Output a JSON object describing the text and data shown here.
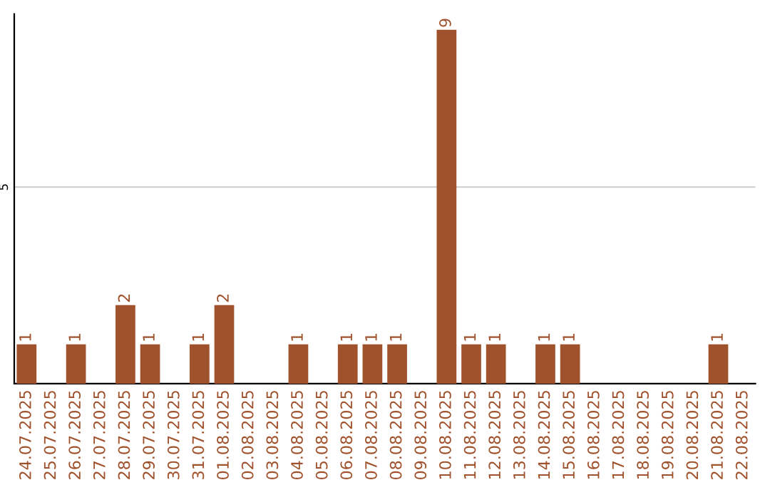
{
  "chart_data": {
    "type": "bar",
    "categories": [
      "24.07.2025",
      "25.07.2025",
      "26.07.2025",
      "27.07.2025",
      "28.07.2025",
      "29.07.2025",
      "30.07.2025",
      "31.07.2025",
      "01.08.2025",
      "02.08.2025",
      "03.08.2025",
      "04.08.2025",
      "05.08.2025",
      "06.08.2025",
      "07.08.2025",
      "08.08.2025",
      "09.08.2025",
      "10.08.2025",
      "11.08.2025",
      "12.08.2025",
      "13.08.2025",
      "14.08.2025",
      "15.08.2025",
      "16.08.2025",
      "17.08.2025",
      "18.08.2025",
      "19.08.2025",
      "20.08.2025",
      "21.08.2025",
      "22.08.2025"
    ],
    "values": [
      1,
      0,
      1,
      0,
      2,
      1,
      0,
      1,
      2,
      0,
      0,
      1,
      0,
      1,
      1,
      1,
      0,
      9,
      1,
      1,
      0,
      1,
      1,
      0,
      0,
      0,
      0,
      0,
      1,
      0
    ],
    "value_labels": [
      "1",
      null,
      "1",
      null,
      "2",
      "1",
      null,
      "1",
      "2",
      null,
      null,
      "1",
      null,
      "1",
      "1",
      "1",
      null,
      "9",
      "1",
      "1",
      null,
      "1",
      "1",
      null,
      null,
      null,
      null,
      null,
      "1",
      null
    ],
    "color": "#a0522d",
    "ylim": [
      0,
      9.4
    ],
    "yticks": [
      5
    ],
    "grid": "y"
  }
}
